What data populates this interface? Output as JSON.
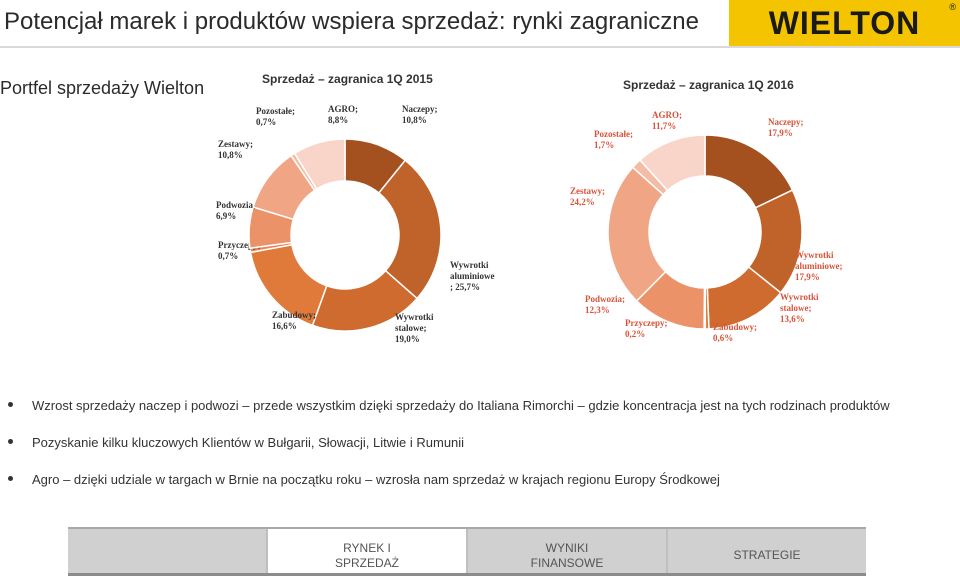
{
  "header": {
    "title": "Potencjał marek i produktów wspiera sprzedaż: rynki zagraniczne",
    "logo_text": "WIELTON",
    "logo_reg": "®"
  },
  "subtitle": "Portfel sprzedaży Wielton",
  "chart_data": [
    {
      "type": "pie",
      "donut": true,
      "title": "Sprzedaż  – zagranica 1Q 2015",
      "slices": [
        {
          "name": "Naczepy",
          "value": 10.8,
          "label": "Naczepy;\n10,8%",
          "color": "#a5501f"
        },
        {
          "name": "Wywrotki aluminiowe",
          "value": 25.7,
          "label": "Wywrotki\naluminiowe\n; 25,7%",
          "color": "#c0632a"
        },
        {
          "name": "Wywrotki stalowe",
          "value": 19.0,
          "label": "Wywrotki\nstalowe;\n19,0%",
          "color": "#cf6b2e"
        },
        {
          "name": "Zabudowy",
          "value": 16.6,
          "label": "Zabudowy;\n16,6%",
          "color": "#e07a3b"
        },
        {
          "name": "Przyczepy",
          "value": 0.7,
          "label": "Przyczepy;\n0,7%",
          "color": "#e8875a"
        },
        {
          "name": "Podwozia",
          "value": 6.9,
          "label": "Podwozia;\n6,9%",
          "color": "#ec9268"
        },
        {
          "name": "Zestawy",
          "value": 10.8,
          "label": "Zestawy;\n10,8%",
          "color": "#f0a685"
        },
        {
          "name": "Pozostałe",
          "value": 0.7,
          "label": "Pozostałe;\n0,7%",
          "color": "#f4bca4"
        },
        {
          "name": "AGRO",
          "value": 8.8,
          "label": "AGRO;\n8,8%",
          "color": "#f8d5c8"
        }
      ]
    },
    {
      "type": "pie",
      "donut": true,
      "title": "Sprzedaż  – zagranica 1Q 2016",
      "slices": [
        {
          "name": "Naczepy",
          "value": 17.9,
          "label": "Naczepy;\n17,9%",
          "color": "#a5501f"
        },
        {
          "name": "Wywrotki aluminiowe",
          "value": 17.9,
          "label": "Wywrotki\naluminiowe;\n17,9%",
          "color": "#c0632a"
        },
        {
          "name": "Wywrotki stalowe",
          "value": 13.6,
          "label": "Wywrotki\nstalowe;\n13,6%",
          "color": "#cf6b2e"
        },
        {
          "name": "Zabudowy",
          "value": 0.6,
          "label": "Zabudowy;\n0,6%",
          "color": "#e07a3b"
        },
        {
          "name": "Przyczepy",
          "value": 0.2,
          "label": "Przyczepy;\n0,2%",
          "color": "#e8875a"
        },
        {
          "name": "Podwozia",
          "value": 12.3,
          "label": "Podwozia;\n12,3%",
          "color": "#ec9268"
        },
        {
          "name": "Zestawy",
          "value": 24.2,
          "label": "Zestawy;\n24,2%",
          "color": "#f0a685"
        },
        {
          "name": "Pozostałe",
          "value": 1.7,
          "label": "Pozostałe;\n1,7%",
          "color": "#f4bca4"
        },
        {
          "name": "AGRO",
          "value": 11.7,
          "label": "AGRO;\n11,7%",
          "color": "#f8d5c8"
        }
      ]
    }
  ],
  "bullets": [
    "Wzrost sprzedaży naczep i podwozi – przede wszystkim dzięki sprzedaży do Italiana Rimorchi – gdzie koncentracja jest na tych rodzinach produktów",
    "Pozyskanie kilku kluczowych Klientów w Bułgarii, Słowacji, Litwie i Rumunii",
    "Agro – dzięki udziale w targach w Brnie na początku roku – wzrosła nam sprzedaż w krajach regionu Europy Środkowej"
  ],
  "nav": {
    "items": [
      {
        "label": ""
      },
      {
        "label": "RYNEK I\nSPRZEDAŻ",
        "active": true
      },
      {
        "label": "WYNIKI\nFINANSOWE"
      },
      {
        "label": "STRATEGIE"
      }
    ]
  }
}
